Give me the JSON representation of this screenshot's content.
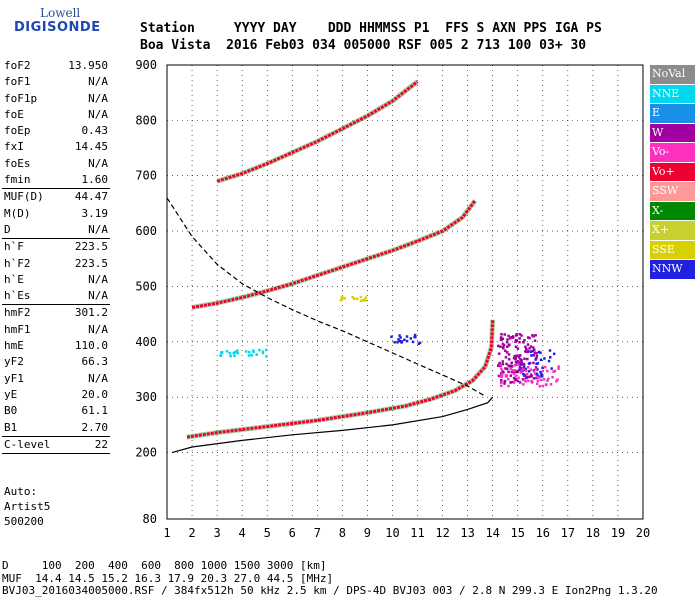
{
  "logo": {
    "line1": "Lowell",
    "line2": "DIGISONDE"
  },
  "header": {
    "line1": "Station     YYYY DAY    DDD HHMMSS P1  FFS S AXN PPS IGA PS",
    "line2": "Boa Vista  2016 Feb03 034 005000 RSF 005 2 713 100 03+ 30"
  },
  "params": [
    {
      "label": "foF2",
      "value": "13.950"
    },
    {
      "label": "foF1",
      "value": "N/A"
    },
    {
      "label": "foF1p",
      "value": "N/A"
    },
    {
      "label": "foE",
      "value": "N/A"
    },
    {
      "label": "foEp",
      "value": "0.43"
    },
    {
      "label": "fxI",
      "value": "14.45"
    },
    {
      "label": "foEs",
      "value": "N/A"
    },
    {
      "label": "fmin",
      "value": "1.60"
    },
    {
      "label": "MUF(D)",
      "value": "44.47"
    },
    {
      "label": "M(D)",
      "value": "3.19"
    },
    {
      "label": "D",
      "value": "N/A"
    },
    {
      "label": "h`F",
      "value": "223.5"
    },
    {
      "label": "h`F2",
      "value": "223.5"
    },
    {
      "label": "h`E",
      "value": "N/A"
    },
    {
      "label": "h`Es",
      "value": "N/A"
    },
    {
      "label": "hmF2",
      "value": "301.2"
    },
    {
      "label": "hmF1",
      "value": "N/A"
    },
    {
      "label": "hmE",
      "value": "110.0"
    },
    {
      "label": "yF2",
      "value": "66.3"
    },
    {
      "label": "yF1",
      "value": "N/A"
    },
    {
      "label": "yE",
      "value": "20.0"
    },
    {
      "label": "B0",
      "value": "61.1"
    },
    {
      "label": "B1",
      "value": "2.70"
    },
    {
      "label": "C-level",
      "value": "22"
    }
  ],
  "auto": {
    "line1": "Auto:",
    "line2": "Artist5",
    "line3": "500200"
  },
  "legend": [
    {
      "label": "NoVal",
      "color": "#8c8c8c"
    },
    {
      "label": "NNE",
      "color": "#00d8f0"
    },
    {
      "label": "E",
      "color": "#1890e8"
    },
    {
      "label": "W",
      "color": "#a000a0"
    },
    {
      "label": "Vo-",
      "color": "#ff30c0"
    },
    {
      "label": "Vo+",
      "color": "#ee0030"
    },
    {
      "label": "SSW",
      "color": "#ff9898"
    },
    {
      "label": "X-",
      "color": "#008800"
    },
    {
      "label": "X+",
      "color": "#c8d030"
    },
    {
      "label": "SSE",
      "color": "#d8d000"
    },
    {
      "label": "NNW",
      "color": "#2020e0"
    }
  ],
  "footer": {
    "line1": "D     100  200  400  600  800 1000 1500 3000 [km]",
    "line2": "MUF  14.4 14.5 15.2 16.3 17.9 20.3 27.0 44.5 [MHz]",
    "line3": "BVJ03_2016034005000.RSF / 384fx512h 50 kHz 2.5 km / DPS-4D BVJ03 003 / 2.8 N 299.3 E Ion2Png 1.3.20"
  },
  "chart_data": {
    "type": "scatter",
    "xlim": [
      1,
      20
    ],
    "ylim": [
      80,
      900
    ],
    "x_ticks": [
      1,
      2,
      3,
      4,
      5,
      6,
      7,
      8,
      9,
      10,
      11,
      12,
      13,
      14,
      15,
      16,
      17,
      18,
      19,
      20
    ],
    "y_ticks": [
      80,
      200,
      300,
      400,
      500,
      600,
      700,
      800,
      900
    ],
    "series": [
      {
        "kind": "trace",
        "color": "#ee0030",
        "points": [
          [
            1.8,
            228
          ],
          [
            3,
            236
          ],
          [
            5,
            247
          ],
          [
            7,
            258
          ],
          [
            9,
            272
          ],
          [
            10.5,
            284
          ],
          [
            11.5,
            296
          ],
          [
            12.5,
            312
          ],
          [
            13.2,
            330
          ],
          [
            13.7,
            355
          ],
          [
            13.95,
            390
          ],
          [
            14.0,
            440
          ]
        ]
      },
      {
        "kind": "trace",
        "color": "#ee0030",
        "points": [
          [
            2,
            462
          ],
          [
            3,
            470
          ],
          [
            4,
            480
          ],
          [
            5,
            492
          ],
          [
            6,
            505
          ],
          [
            7,
            520
          ],
          [
            8,
            535
          ],
          [
            9,
            550
          ],
          [
            10,
            565
          ],
          [
            11,
            582
          ],
          [
            12,
            600
          ],
          [
            12.8,
            625
          ],
          [
            13.3,
            655
          ]
        ]
      },
      {
        "kind": "trace",
        "color": "#ee0030",
        "points": [
          [
            3,
            690
          ],
          [
            4,
            704
          ],
          [
            5,
            722
          ],
          [
            6,
            742
          ],
          [
            7,
            762
          ],
          [
            8,
            785
          ],
          [
            9,
            808
          ],
          [
            10,
            835
          ],
          [
            11,
            870
          ]
        ]
      },
      {
        "kind": "profile",
        "style": "solid",
        "color": "#000000",
        "points": [
          [
            1.2,
            200
          ],
          [
            2,
            210
          ],
          [
            4,
            222
          ],
          [
            6,
            232
          ],
          [
            8,
            240
          ],
          [
            10,
            250
          ],
          [
            12,
            265
          ],
          [
            13,
            278
          ],
          [
            13.8,
            290
          ],
          [
            14.0,
            300
          ]
        ]
      },
      {
        "kind": "profile",
        "style": "dashed",
        "color": "#000000",
        "points": [
          [
            1.0,
            660
          ],
          [
            2,
            590
          ],
          [
            3,
            540
          ],
          [
            4,
            505
          ],
          [
            5,
            480
          ],
          [
            6,
            458
          ],
          [
            7,
            438
          ],
          [
            8,
            420
          ],
          [
            9,
            400
          ],
          [
            10,
            380
          ],
          [
            11,
            360
          ],
          [
            12,
            340
          ],
          [
            13,
            320
          ],
          [
            13.7,
            302
          ]
        ]
      },
      {
        "kind": "cluster",
        "color": "#a000a0",
        "center": [
          15,
          370
        ],
        "spread": [
          0.8,
          45
        ],
        "count": 150
      },
      {
        "kind": "cluster",
        "color": "#2020e0",
        "center": [
          15.8,
          360
        ],
        "spread": [
          0.7,
          25
        ],
        "count": 40
      },
      {
        "kind": "cluster",
        "color": "#ff30c0",
        "center": [
          15.5,
          340
        ],
        "spread": [
          1.2,
          20
        ],
        "count": 60
      },
      {
        "kind": "cluster",
        "color": "#2020e0",
        "center": [
          10.5,
          405
        ],
        "spread": [
          0.6,
          8
        ],
        "count": 20
      },
      {
        "kind": "cluster",
        "color": "#00d8f0",
        "center": [
          4.0,
          380
        ],
        "spread": [
          1.0,
          6
        ],
        "count": 25
      },
      {
        "kind": "cluster",
        "color": "#d8d000",
        "center": [
          8.5,
          478
        ],
        "spread": [
          0.7,
          4
        ],
        "count": 15
      }
    ]
  }
}
